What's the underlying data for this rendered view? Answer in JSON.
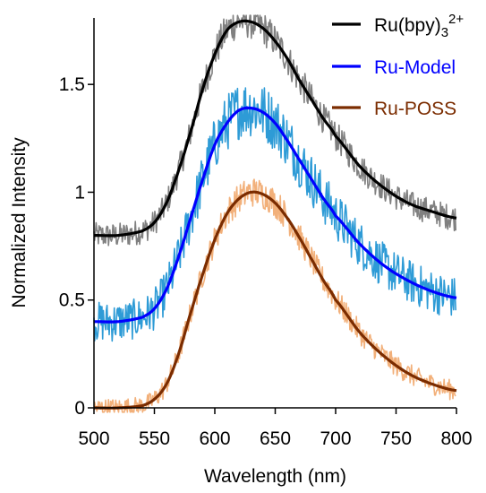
{
  "chart_data": {
    "type": "line",
    "title": "",
    "xlabel": "Wavelength (nm)",
    "ylabel": "Normalized Intensity",
    "xlim": [
      500,
      800
    ],
    "ylim": [
      0,
      1.8
    ],
    "x_ticks": [
      "500",
      "550",
      "600",
      "650",
      "700",
      "750",
      "800"
    ],
    "y_ticks": [
      "0",
      "0.5",
      "1",
      "1.5"
    ],
    "y_tick_values": [
      0,
      0.5,
      1,
      1.5
    ],
    "grid": false,
    "legend_position": "top-right",
    "series": [
      {
        "name": "Ru(bpy)3 2+",
        "legend_base": "Ru(bpy)",
        "legend_sub": "3",
        "legend_sup": "2+",
        "color": "#000000",
        "raw_color": "#808080",
        "x": [
          500,
          520,
          540,
          550,
          560,
          570,
          580,
          590,
          600,
          610,
          620,
          630,
          640,
          650,
          660,
          670,
          680,
          690,
          700,
          720,
          740,
          760,
          780,
          800
        ],
        "y": [
          0.8,
          0.8,
          0.82,
          0.86,
          0.95,
          1.1,
          1.28,
          1.48,
          1.64,
          1.75,
          1.79,
          1.79,
          1.76,
          1.7,
          1.62,
          1.52,
          1.43,
          1.34,
          1.26,
          1.12,
          1.02,
          0.95,
          0.91,
          0.88
        ]
      },
      {
        "name": "Ru-Model",
        "color": "#0000ff",
        "raw_color": "#2e9bd6",
        "x": [
          500,
          520,
          540,
          550,
          560,
          570,
          580,
          590,
          600,
          610,
          620,
          630,
          640,
          650,
          660,
          670,
          680,
          690,
          700,
          720,
          740,
          760,
          780,
          800
        ],
        "y": [
          0.4,
          0.4,
          0.42,
          0.46,
          0.55,
          0.7,
          0.88,
          1.06,
          1.22,
          1.32,
          1.38,
          1.39,
          1.37,
          1.32,
          1.24,
          1.15,
          1.06,
          0.97,
          0.89,
          0.76,
          0.66,
          0.59,
          0.54,
          0.51
        ]
      },
      {
        "name": "Ru-POSS",
        "color": "#7b2c00",
        "raw_color": "#f2b07a",
        "x": [
          500,
          520,
          540,
          550,
          560,
          570,
          580,
          590,
          600,
          610,
          620,
          630,
          640,
          650,
          660,
          670,
          680,
          690,
          700,
          720,
          740,
          760,
          780,
          800
        ],
        "y": [
          0.0,
          0.0,
          0.01,
          0.04,
          0.11,
          0.25,
          0.44,
          0.62,
          0.78,
          0.9,
          0.97,
          1.0,
          0.99,
          0.95,
          0.88,
          0.79,
          0.69,
          0.59,
          0.5,
          0.35,
          0.24,
          0.16,
          0.11,
          0.08
        ]
      }
    ]
  }
}
